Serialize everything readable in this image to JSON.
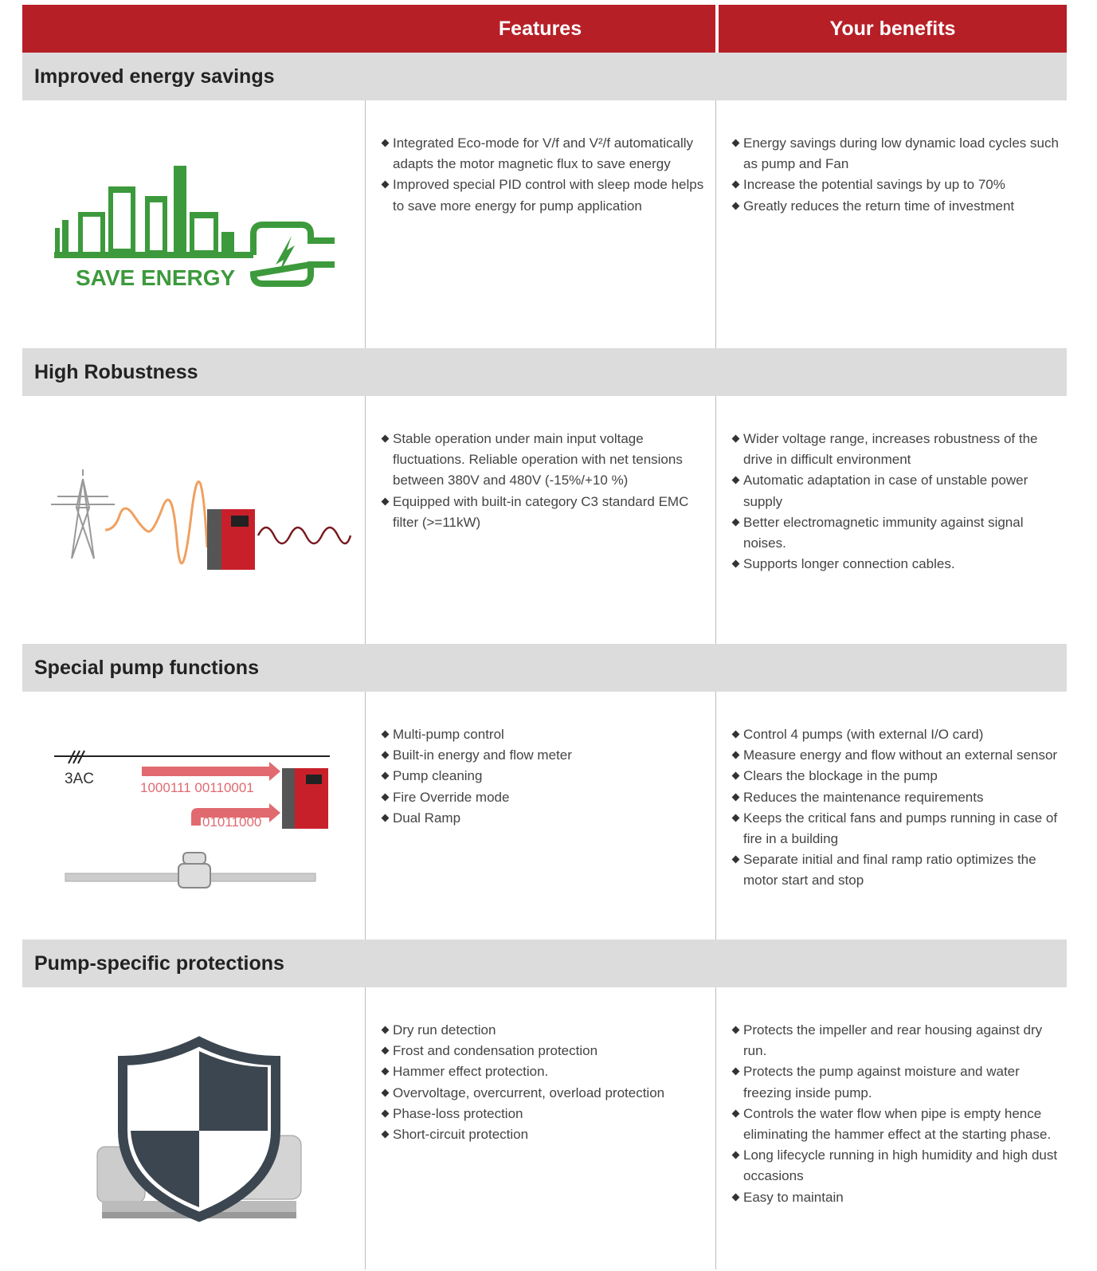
{
  "header": {
    "features": "Features",
    "benefits": "Your benefits"
  },
  "sections": [
    {
      "title": "Improved energy savings",
      "image_text": [
        "SAVE ENERGY"
      ],
      "features": [
        "Integrated Eco-mode for V/f and V²/f automatically adapts the motor magnetic flux to save energy",
        "Improved special PID control with sleep mode helps to save more energy for pump application"
      ],
      "benefits": [
        "Energy savings during low dynamic load cycles such as pump and Fan",
        "Increase the potential savings by up to 70%",
        "Greatly reduces the return time of investment"
      ]
    },
    {
      "title": "High Robustness",
      "features": [
        "Stable operation under main input voltage fluctuations. Reliable operation with net tensions between 380V and 480V (-15%/+10 %)",
        "Equipped with built-in category C3 standard EMC filter (>=11kW)"
      ],
      "benefits": [
        "Wider voltage range, increases robustness of the drive in difficult environment",
        "Automatic adaptation in case of unstable power supply",
        "Better electromagnetic immunity against signal noises.",
        "Supports longer connection cables."
      ]
    },
    {
      "title": "Special pump functions",
      "image_text": [
        "3AC",
        "1000111 00110001",
        "01011000"
      ],
      "features": [
        "Multi-pump control",
        "Built-in energy and flow meter",
        "Pump cleaning",
        "Fire Override mode",
        "Dual Ramp"
      ],
      "benefits": [
        "Control 4 pumps (with external I/O  card)",
        "Measure energy and flow without an external sensor",
        "Clears the blockage in the pump",
        "Reduces the maintenance requirements",
        "Keeps the critical fans and pumps running in case of fire in a building",
        "Separate initial and final ramp ratio optimizes the motor start and stop"
      ]
    },
    {
      "title": "Pump-specific protections",
      "features": [
        "Dry run detection",
        "Frost and condensation protection",
        "Hammer effect protection.",
        "Overvoltage, overcurrent, overload protection",
        "Phase-loss protection",
        "Short-circuit protection"
      ],
      "benefits": [
        "Protects the impeller and rear housing against dry run.",
        "Protects the pump against moisture and water freezing inside pump.",
        "Controls the water flow when pipe is empty hence eliminating the hammer effect at the starting phase.",
        "Long lifecycle running in high humidity and high dust occasions",
        "Easy to maintain"
      ]
    }
  ]
}
